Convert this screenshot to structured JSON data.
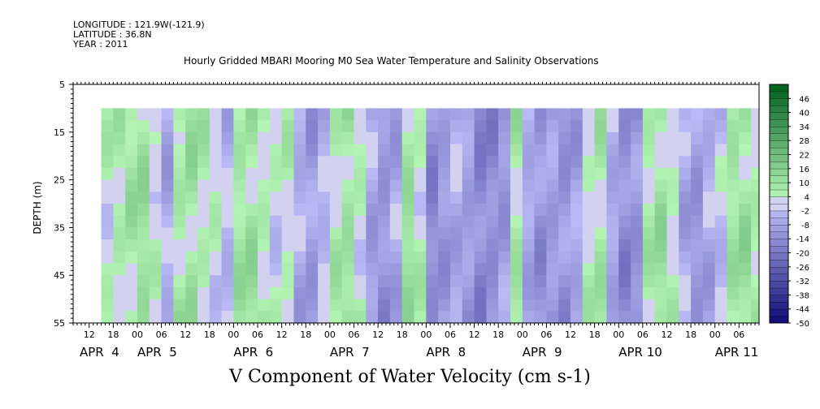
{
  "header": {
    "longitude": "LONGITUDE : 121.9W(-121.9)",
    "latitude": "LATITUDE : 36.8N",
    "year": "YEAR : 2011",
    "title": "Hourly Gridded MBARI Mooring M0 Sea Water Temperature and Salinity Observations"
  },
  "chart_data": {
    "type": "heatmap",
    "title": "Hourly Gridded MBARI Mooring M0 Sea Water Temperature and Salinity Observations",
    "xlabel": "V Component of Water Velocity (cm s-1)",
    "ylabel": "DEPTH (m)",
    "x_range_hours_from_apr4_00": [
      8,
      179
    ],
    "data_x_start_hours_from_apr4_00": [
      15,
      179
    ],
    "ylim": [
      55,
      5
    ],
    "data_depth_range": [
      10,
      55
    ],
    "yticks": [
      5,
      15,
      25,
      35,
      45,
      55
    ],
    "xticks": [
      {
        "h": 12,
        "label": "12"
      },
      {
        "h": 18,
        "label": "18"
      },
      {
        "h": 24,
        "label": "00"
      },
      {
        "h": 30,
        "label": "06"
      },
      {
        "h": 36,
        "label": "12"
      },
      {
        "h": 42,
        "label": "18"
      },
      {
        "h": 48,
        "label": "00"
      },
      {
        "h": 54,
        "label": "06"
      },
      {
        "h": 60,
        "label": "12"
      },
      {
        "h": 66,
        "label": "18"
      },
      {
        "h": 72,
        "label": "00"
      },
      {
        "h": 78,
        "label": "06"
      },
      {
        "h": 84,
        "label": "12"
      },
      {
        "h": 90,
        "label": "18"
      },
      {
        "h": 96,
        "label": "00"
      },
      {
        "h": 102,
        "label": "06"
      },
      {
        "h": 108,
        "label": "12"
      },
      {
        "h": 114,
        "label": "18"
      },
      {
        "h": 120,
        "label": "00"
      },
      {
        "h": 126,
        "label": "06"
      },
      {
        "h": 132,
        "label": "12"
      },
      {
        "h": 138,
        "label": "18"
      },
      {
        "h": 144,
        "label": "00"
      },
      {
        "h": 150,
        "label": "06"
      },
      {
        "h": 156,
        "label": "12"
      },
      {
        "h": 162,
        "label": "18"
      },
      {
        "h": 168,
        "label": "00"
      },
      {
        "h": 174,
        "label": "06"
      }
    ],
    "date_labels": [
      {
        "h": 0,
        "label": "APR  4"
      },
      {
        "h": 24,
        "label": "APR  5"
      },
      {
        "h": 48,
        "label": "APR  6"
      },
      {
        "h": 72,
        "label": "APR  7"
      },
      {
        "h": 96,
        "label": "APR  8"
      },
      {
        "h": 120,
        "label": "APR  9"
      },
      {
        "h": 144,
        "label": "APR 10"
      },
      {
        "h": 168,
        "label": "APR 11"
      }
    ],
    "colorbar": {
      "min": -50,
      "max": 52,
      "step": 3,
      "labels": [
        46,
        40,
        34,
        28,
        22,
        16,
        10,
        4,
        -2,
        -8,
        -14,
        -20,
        -26,
        -32,
        -38,
        -44,
        -50
      ]
    },
    "column_profiles": [
      {
        "h": 15,
        "value": 4
      },
      {
        "h": 18,
        "value": 6
      },
      {
        "h": 21,
        "value": 8
      },
      {
        "h": 24,
        "value": 10
      },
      {
        "h": 27,
        "value": 2
      },
      {
        "h": 30,
        "value": -6
      },
      {
        "h": 33,
        "value": 8
      },
      {
        "h": 36,
        "value": 10
      },
      {
        "h": 39,
        "value": 6
      },
      {
        "h": 42,
        "value": 2
      },
      {
        "h": 45,
        "value": -4
      },
      {
        "h": 48,
        "value": 8
      },
      {
        "h": 51,
        "value": 10
      },
      {
        "h": 54,
        "value": 6
      },
      {
        "h": 57,
        "value": 2
      },
      {
        "h": 60,
        "value": 4
      },
      {
        "h": 63,
        "value": -6
      },
      {
        "h": 66,
        "value": -10
      },
      {
        "h": 69,
        "value": -4
      },
      {
        "h": 72,
        "value": 6
      },
      {
        "h": 75,
        "value": 10
      },
      {
        "h": 78,
        "value": 4
      },
      {
        "h": 81,
        "value": -8
      },
      {
        "h": 84,
        "value": -12
      },
      {
        "h": 87,
        "value": -8
      },
      {
        "h": 90,
        "value": 10
      },
      {
        "h": 93,
        "value": 4
      },
      {
        "h": 96,
        "value": -14
      },
      {
        "h": 99,
        "value": -10
      },
      {
        "h": 102,
        "value": -6
      },
      {
        "h": 105,
        "value": -10
      },
      {
        "h": 108,
        "value": -16
      },
      {
        "h": 111,
        "value": -14
      },
      {
        "h": 114,
        "value": -10
      },
      {
        "h": 117,
        "value": 8
      },
      {
        "h": 120,
        "value": -6
      },
      {
        "h": 123,
        "value": -12
      },
      {
        "h": 126,
        "value": -10
      },
      {
        "h": 129,
        "value": -12
      },
      {
        "h": 132,
        "value": -8
      },
      {
        "h": 135,
        "value": 4
      },
      {
        "h": 138,
        "value": 8
      },
      {
        "h": 141,
        "value": -6
      },
      {
        "h": 144,
        "value": -14
      },
      {
        "h": 147,
        "value": -12
      },
      {
        "h": 150,
        "value": 6
      },
      {
        "h": 153,
        "value": 10
      },
      {
        "h": 156,
        "value": 4
      },
      {
        "h": 159,
        "value": -6
      },
      {
        "h": 162,
        "value": -10
      },
      {
        "h": 165,
        "value": -6
      },
      {
        "h": 168,
        "value": -2
      },
      {
        "h": 171,
        "value": 8
      },
      {
        "h": 174,
        "value": 10
      },
      {
        "h": 177,
        "value": 6
      }
    ]
  }
}
